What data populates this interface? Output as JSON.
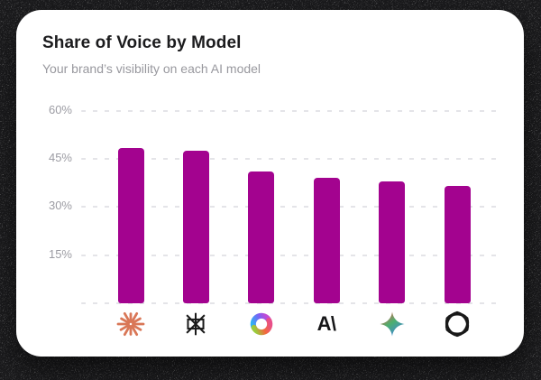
{
  "card": {
    "background": "#FFFFFF"
  },
  "chart_data": {
    "type": "bar",
    "title": "Share of Voice by Model",
    "subtitle": "Your brand’s visibility on each AI model",
    "categories": [
      "Claude",
      "Perplexity",
      "Microsoft Copilot",
      "Anthropic",
      "Google Gemini",
      "OpenAI ChatGPT"
    ],
    "category_icons": [
      "claude-icon",
      "perplexity-icon",
      "copilot-icon",
      "anthropic-icon",
      "gemini-icon",
      "openai-icon"
    ],
    "values": [
      48.5,
      47.5,
      41,
      39,
      38,
      36.5
    ],
    "unit": "%",
    "xlabel": "",
    "ylabel": "",
    "ylim": [
      0,
      63
    ],
    "yticks": [
      {
        "value": 0,
        "label": ""
      },
      {
        "value": 15,
        "label": "15%"
      },
      {
        "value": 30,
        "label": "30%"
      },
      {
        "value": 45,
        "label": "45%"
      },
      {
        "value": 60,
        "label": "60%"
      }
    ],
    "grid": "dashed-horizontal",
    "legend": "none",
    "bar_color": "#A3038F",
    "tick_color": "#9C9CA3",
    "grid_color": "#E4E4E8"
  }
}
